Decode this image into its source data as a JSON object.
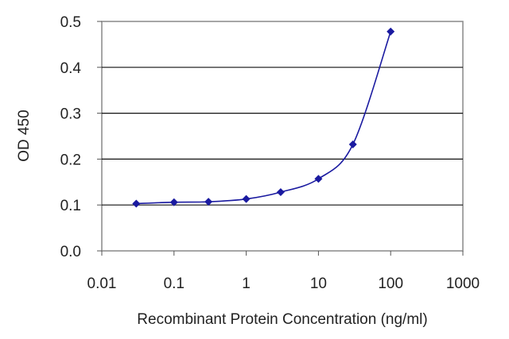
{
  "chart_data": {
    "type": "line",
    "x_scale": "log",
    "xlabel": "Recombinant Protein Concentration (ng/ml)",
    "ylabel": "OD 450",
    "xlim": [
      0.01,
      1000
    ],
    "ylim": [
      0,
      0.5
    ],
    "x_ticks": [
      "0.01",
      "0.1",
      "1",
      "10",
      "100",
      "1000"
    ],
    "y_ticks": [
      "0.0",
      "0.1",
      "0.2",
      "0.3",
      "0.4",
      "0.5"
    ],
    "grid": "horizontal",
    "series": [
      {
        "x": [
          0.03,
          0.1,
          0.3,
          1,
          3,
          10,
          30,
          100
        ],
        "y": [
          0.103,
          0.106,
          0.107,
          0.113,
          0.128,
          0.157,
          0.232,
          0.478
        ],
        "color": "#1a1aa0"
      }
    ]
  }
}
